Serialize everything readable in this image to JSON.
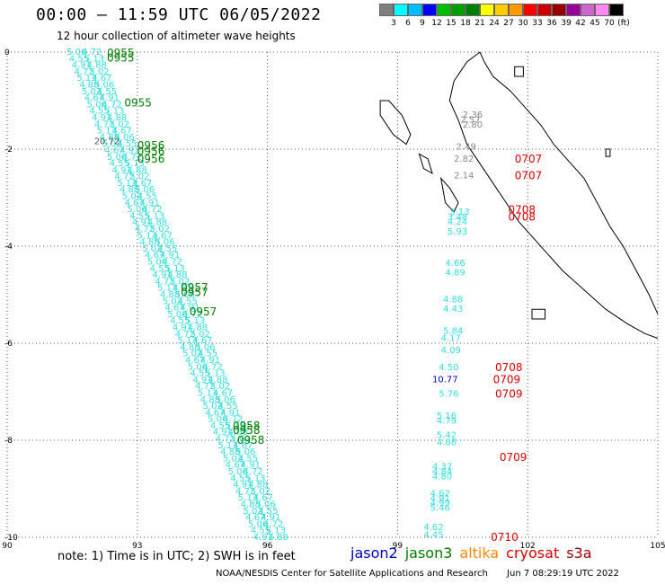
{
  "header": {
    "title": "00:00 – 11:59 UTC 06/05/2022",
    "subtitle": "12 hour collection of altimeter wave heights"
  },
  "legend": {
    "colors": [
      "#7f7f7f",
      "#00ffff",
      "#00bfff",
      "#0000ff",
      "#00bf00",
      "#00a000",
      "#008000",
      "#ffff00",
      "#ffcc00",
      "#ff9900",
      "#ff0000",
      "#cc0000",
      "#990000",
      "#990099",
      "#cc66cc",
      "#ff88ee",
      "#000000"
    ],
    "labels": [
      "3",
      "6",
      "9",
      "12",
      "15",
      "18",
      "21",
      "24",
      "27",
      "30",
      "33",
      "36",
      "39",
      "42",
      "45",
      "70",
      "(ft)"
    ]
  },
  "map": {
    "lon_min": 90,
    "lon_max": 105,
    "lat_min": -10,
    "lat_max": 0,
    "x_ticks": [
      "90",
      "93",
      "96",
      "99",
      "102",
      "105"
    ],
    "y_ticks": [
      "0",
      "-2",
      "-4",
      "-6",
      "-8",
      "-10"
    ]
  },
  "passes": {
    "jason3_color": "#008000",
    "western_color": "#33dddd",
    "western_track": {
      "lon_start": 91.6,
      "lat_start": 0.0,
      "lon_end": 95.9,
      "lat_end": -10.0,
      "sample_labels": [
        "5.06",
        "4.55",
        "4.91",
        "4.72",
        "5.13",
        "4.88",
        "5.02",
        "4.67"
      ]
    },
    "western_value": "20.72",
    "western_times": [
      {
        "t": "0955",
        "lon": 92.3,
        "lat": -0.02
      },
      {
        "t": "0955",
        "lon": 92.3,
        "lat": -0.12
      },
      {
        "t": "0955",
        "lon": 92.7,
        "lat": -1.05
      },
      {
        "t": "0956",
        "lon": 93.0,
        "lat": -1.93
      },
      {
        "t": "0956",
        "lon": 93.0,
        "lat": -2.05
      },
      {
        "t": "0956",
        "lon": 93.0,
        "lat": -2.2
      },
      {
        "t": "0957",
        "lon": 94.0,
        "lat": -4.85
      },
      {
        "t": "0957",
        "lon": 94.0,
        "lat": -4.95
      },
      {
        "t": "0957",
        "lon": 94.2,
        "lat": -5.35
      },
      {
        "t": "0958",
        "lon": 95.2,
        "lat": -7.7
      },
      {
        "t": "0958",
        "lon": 95.2,
        "lat": -7.8
      },
      {
        "t": "0958",
        "lon": 95.3,
        "lat": -8.0
      }
    ],
    "eastern_gray": [
      {
        "v": "2.36",
        "lon": 100.5,
        "lat": -1.3
      },
      {
        "v": "2.57",
        "lon": 100.45,
        "lat": -1.4
      },
      {
        "v": "2.80",
        "lon": 100.5,
        "lat": -1.5
      },
      {
        "v": "2.49",
        "lon": 100.35,
        "lat": -1.95
      },
      {
        "v": "2.82",
        "lon": 100.3,
        "lat": -2.2
      },
      {
        "v": "2.14",
        "lon": 100.3,
        "lat": -2.55
      }
    ],
    "eastern_cyan": [
      {
        "v": "3.13",
        "lon": 100.2,
        "lat": -3.3
      },
      {
        "v": "3.48",
        "lon": 100.15,
        "lat": -3.4
      },
      {
        "v": "4.24",
        "lon": 100.15,
        "lat": -3.5
      },
      {
        "v": "5.93",
        "lon": 100.15,
        "lat": -3.7
      },
      {
        "v": "4.66",
        "lon": 100.1,
        "lat": -4.35
      },
      {
        "v": "4.89",
        "lon": 100.1,
        "lat": -4.55
      },
      {
        "v": "4.88",
        "lon": 100.05,
        "lat": -5.1
      },
      {
        "v": "4.43",
        "lon": 100.05,
        "lat": -5.3
      },
      {
        "v": "5.84",
        "lon": 100.05,
        "lat": -5.75
      },
      {
        "v": "4.17",
        "lon": 100.0,
        "lat": -5.9
      },
      {
        "v": "4.09",
        "lon": 100.0,
        "lat": -6.15
      },
      {
        "v": "4.50",
        "lon": 99.95,
        "lat": -6.5
      },
      {
        "v": "5.76",
        "lon": 99.95,
        "lat": -7.05
      },
      {
        "v": "5.16",
        "lon": 99.9,
        "lat": -7.5
      },
      {
        "v": "4.79",
        "lon": 99.9,
        "lat": -7.6
      },
      {
        "v": "5.42",
        "lon": 99.9,
        "lat": -7.9
      },
      {
        "v": "4.88",
        "lon": 99.9,
        "lat": -8.05
      },
      {
        "v": "4.37",
        "lon": 99.8,
        "lat": -8.55
      },
      {
        "v": "4.84",
        "lon": 99.8,
        "lat": -8.65
      },
      {
        "v": "4.80",
        "lon": 99.8,
        "lat": -8.75
      },
      {
        "v": "4.62",
        "lon": 99.75,
        "lat": -9.1
      },
      {
        "v": "4.91",
        "lon": 99.75,
        "lat": -9.2
      },
      {
        "v": "4.99",
        "lon": 99.75,
        "lat": -9.3
      },
      {
        "v": "5.46",
        "lon": 99.75,
        "lat": -9.4
      },
      {
        "v": "4.62",
        "lon": 99.6,
        "lat": -9.8
      },
      {
        "v": "4.45",
        "lon": 99.6,
        "lat": -9.95
      }
    ],
    "eastern_blue": [
      {
        "v": "10.77",
        "lon": 99.8,
        "lat": -6.75
      }
    ],
    "eastern_times": [
      {
        "t": "0707",
        "lon": 101.7,
        "lat": -2.2
      },
      {
        "t": "0707",
        "lon": 101.7,
        "lat": -2.55
      },
      {
        "t": "0708",
        "lon": 101.55,
        "lat": -3.25
      },
      {
        "t": "0708",
        "lon": 101.55,
        "lat": -3.4
      },
      {
        "t": "0708",
        "lon": 101.25,
        "lat": -6.5
      },
      {
        "t": "0709",
        "lon": 101.2,
        "lat": -6.75
      },
      {
        "t": "0709",
        "lon": 101.25,
        "lat": -7.05
      },
      {
        "t": "0709",
        "lon": 101.35,
        "lat": -8.35
      },
      {
        "t": "0710",
        "lon": 101.15,
        "lat": -10.0
      }
    ]
  },
  "note": "note:  1) Time is in UTC;  2) SWH is in feet",
  "satellites": [
    {
      "name": "jason2",
      "color": "#0000cc"
    },
    {
      "name": "jason3",
      "color": "#008000"
    },
    {
      "name": "altika",
      "color": "#ff8800"
    },
    {
      "name": "cryosat",
      "color": "#dd0000"
    },
    {
      "name": "s3a",
      "color": "#990000"
    }
  ],
  "footer": {
    "org": "NOAA/NESDIS Center for Satellite Applications and Research",
    "timestamp": "Jun  7 08:29:19 UTC 2022"
  }
}
